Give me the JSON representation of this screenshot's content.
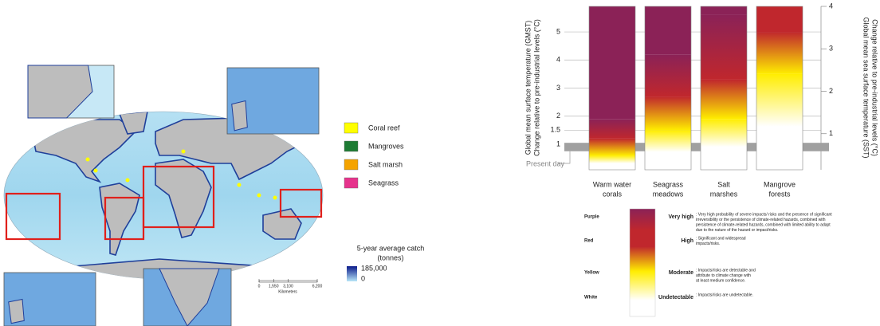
{
  "map": {
    "legend": [
      {
        "label": "Coral reef",
        "color": "#ffff00"
      },
      {
        "label": "Mangroves",
        "color": "#1e7b34"
      },
      {
        "label": "Salt marsh",
        "color": "#f5a300"
      },
      {
        "label": "Seagrass",
        "color": "#e6338c"
      }
    ],
    "catch": {
      "title": [
        "5-year average catch",
        "(tonnes)"
      ],
      "max": {
        "value": 185000,
        "label": "185,000"
      },
      "min": 0
    },
    "scale": {
      "ticks": [
        0,
        {
          "value": 1550,
          "label": "1,550"
        },
        {
          "value": 3100,
          "label": "3,100"
        },
        {
          "value": 6200,
          "label": "6,200"
        }
      ],
      "unit": "Kilometers"
    }
  },
  "chart_data": {
    "type": "ember",
    "y_label": [
      "Global mean surface temperature (GMST)",
      "Change relative to pre-industrial levels (°C)"
    ],
    "y2_label": [
      "Global mean sea surface temperature (SST)",
      "Change relative to pre-industrial levels (°C)"
    ],
    "categories": [
      [
        "Warm water",
        "corals"
      ],
      [
        "Seagrass",
        "meadows"
      ],
      [
        "Salt",
        "marshes"
      ],
      [
        "Mangrove",
        "forests"
      ]
    ],
    "ylim": [
      0.09,
      5.91
    ],
    "yticks": [
      1,
      1.5,
      2,
      3,
      4,
      5
    ],
    "y2lim": [
      0.15,
      4
    ],
    "y2ticks": [
      1,
      2,
      3,
      4
    ],
    "present_day": {
      "label": "Present day",
      "range": [
        0.75,
        1.05
      ]
    },
    "base": {
      "name": "Undetectable",
      "color_name": "White",
      "color": "#ffffff",
      "description": [
        ": Impacts/risks are undetectable."
      ]
    },
    "series": [
      {
        "name": "Moderate",
        "color_name": "Yellow",
        "color": "#ffed00",
        "values": [
          0.6,
          1.5,
          1.9,
          3.5
        ],
        "description": [
          ": Impacts/risks are detectable and",
          "attribute to climate change with",
          "at least medium confidence."
        ]
      },
      {
        "name": "High",
        "color_name": "Red",
        "color": "#c0272d",
        "values": [
          1.2,
          2.7,
          3.3,
          5.0
        ],
        "description": [
          ": Significant and widespread",
          "impacts/risks."
        ]
      },
      {
        "name": "Very high",
        "color_name": "Purple",
        "color": "#8b2257",
        "values": [
          1.9,
          4.2,
          5.6,
          null
        ],
        "description": [
          ": Very high probability of severe impacts/ risks and the presence of significant",
          "irreversibility or the persistence of climate-related hazards, combined with",
          "persistence of climate-related hazards, combined with limited ability to adapt",
          "due to the nature of the hazard or impact/risks."
        ]
      }
    ]
  }
}
